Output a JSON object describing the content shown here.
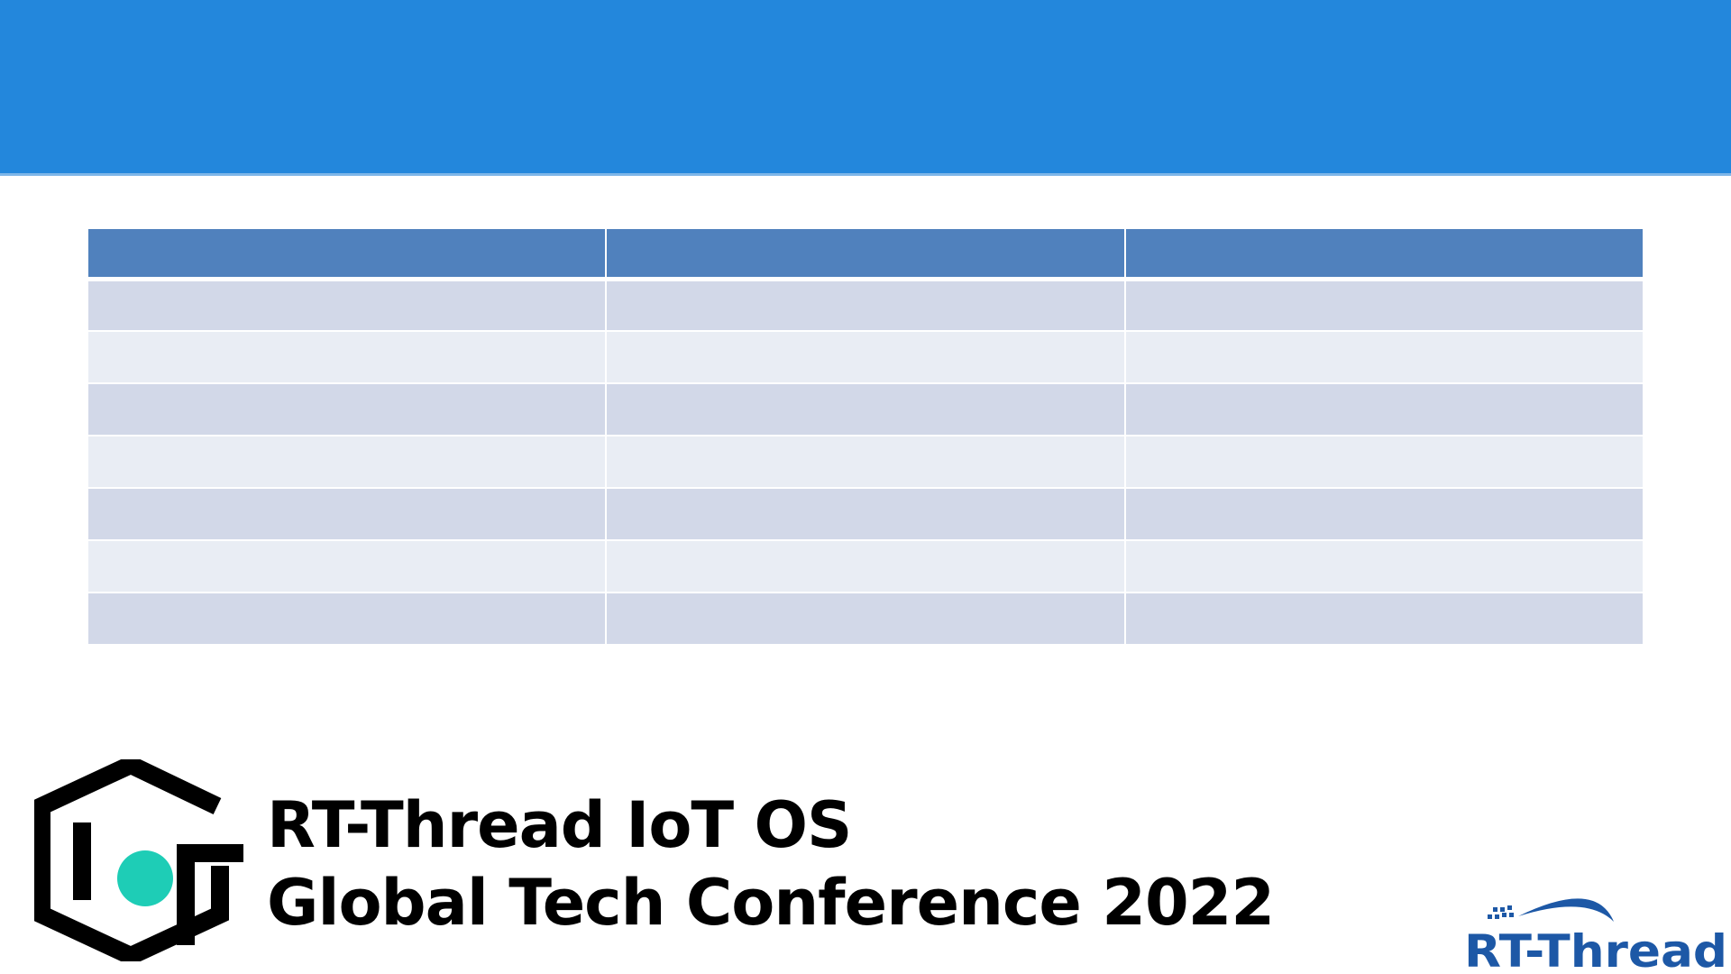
{
  "table": {
    "headers": [
      "",
      "",
      ""
    ],
    "rows": [
      [
        "",
        "",
        ""
      ],
      [
        "",
        "",
        ""
      ],
      [
        "",
        "",
        ""
      ],
      [
        "",
        "",
        ""
      ],
      [
        "",
        "",
        ""
      ],
      [
        "",
        "",
        ""
      ],
      [
        "",
        "",
        ""
      ]
    ]
  },
  "footer": {
    "title_line1": "RT-Thread IoT OS",
    "title_line2": "Global Tech Conference 2022",
    "iot_logo_icon": "iot-hexagon-logo",
    "brand_text": "RT-Thread"
  },
  "colors": {
    "header_band": "#2387DC",
    "table_header": "#5081BD",
    "row_odd": "#D2D8E8",
    "row_even": "#E9EDF4",
    "logo_dot": "#1ECDB6",
    "brand_blue": "#1D58A6"
  }
}
